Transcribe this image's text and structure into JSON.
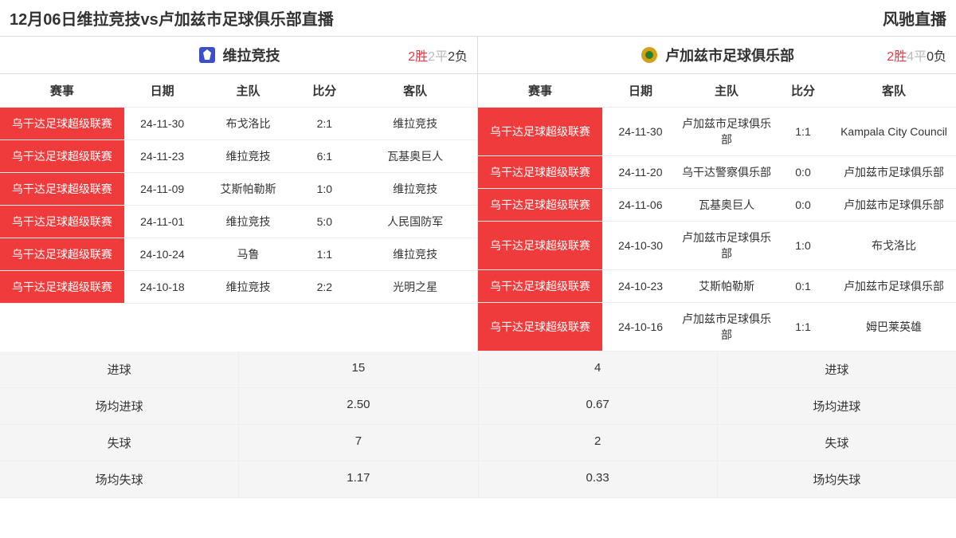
{
  "header": {
    "title": "12月06日维拉竞技vs卢加兹市足球俱乐部直播",
    "brand": "风驰直播"
  },
  "colors": {
    "event_bg": "#ef3b3b",
    "event_text": "#ffffff",
    "win_color": "#e63946",
    "draw_color": "#bbbbbb",
    "stats_bg": "#f5f5f5"
  },
  "columns": {
    "event": "赛事",
    "date": "日期",
    "home": "主队",
    "score": "比分",
    "away": "客队"
  },
  "teamA": {
    "name": "维拉竞技",
    "logo_bg": "#3a4fc8",
    "record": {
      "win_n": "2",
      "win_l": "胜",
      "draw_n": "2",
      "draw_l": "平",
      "loss_n": "2",
      "loss_l": "负"
    },
    "rows": [
      {
        "event": "乌干达足球超级联赛",
        "date": "24-11-30",
        "home": "布戈洛比",
        "score": "2:1",
        "away": "维拉竞技"
      },
      {
        "event": "乌干达足球超级联赛",
        "date": "24-11-23",
        "home": "维拉竞技",
        "score": "6:1",
        "away": "瓦基奥巨人"
      },
      {
        "event": "乌干达足球超级联赛",
        "date": "24-11-09",
        "home": "艾斯帕勒斯",
        "score": "1:0",
        "away": "维拉竞技"
      },
      {
        "event": "乌干达足球超级联赛",
        "date": "24-11-01",
        "home": "维拉竞技",
        "score": "5:0",
        "away": "人民国防军"
      },
      {
        "event": "乌干达足球超级联赛",
        "date": "24-10-24",
        "home": "马鲁",
        "score": "1:1",
        "away": "维拉竞技"
      },
      {
        "event": "乌干达足球超级联赛",
        "date": "24-10-18",
        "home": "维拉竞技",
        "score": "2:2",
        "away": "光明之星"
      }
    ]
  },
  "teamB": {
    "name": "卢加兹市足球俱乐部",
    "logo_bg": "#d4a017",
    "record": {
      "win_n": "2",
      "win_l": "胜",
      "draw_n": "4",
      "draw_l": "平",
      "loss_n": "0",
      "loss_l": "负"
    },
    "rows": [
      {
        "event": "乌干达足球超级联赛",
        "date": "24-11-30",
        "home": "卢加兹市足球俱乐部",
        "score": "1:1",
        "away": "Kampala City Council"
      },
      {
        "event": "乌干达足球超级联赛",
        "date": "24-11-20",
        "home": "乌干达警察俱乐部",
        "score": "0:0",
        "away": "卢加兹市足球俱乐部"
      },
      {
        "event": "乌干达足球超级联赛",
        "date": "24-11-06",
        "home": "瓦基奥巨人",
        "score": "0:0",
        "away": "卢加兹市足球俱乐部"
      },
      {
        "event": "乌干达足球超级联赛",
        "date": "24-10-30",
        "home": "卢加兹市足球俱乐部",
        "score": "1:0",
        "away": "布戈洛比"
      },
      {
        "event": "乌干达足球超级联赛",
        "date": "24-10-23",
        "home": "艾斯帕勒斯",
        "score": "0:1",
        "away": "卢加兹市足球俱乐部"
      },
      {
        "event": "乌干达足球超级联赛",
        "date": "24-10-16",
        "home": "卢加兹市足球俱乐部",
        "score": "1:1",
        "away": "姆巴莱英雄"
      }
    ]
  },
  "stats": {
    "labels": {
      "goals": "进球",
      "avg_goals": "场均进球",
      "conceded": "失球",
      "avg_conceded": "场均失球"
    },
    "teamA": {
      "goals": "15",
      "avg_goals": "2.50",
      "conceded": "7",
      "avg_conceded": "1.17"
    },
    "teamB": {
      "goals": "4",
      "avg_goals": "0.67",
      "conceded": "2",
      "avg_conceded": "0.33"
    }
  }
}
